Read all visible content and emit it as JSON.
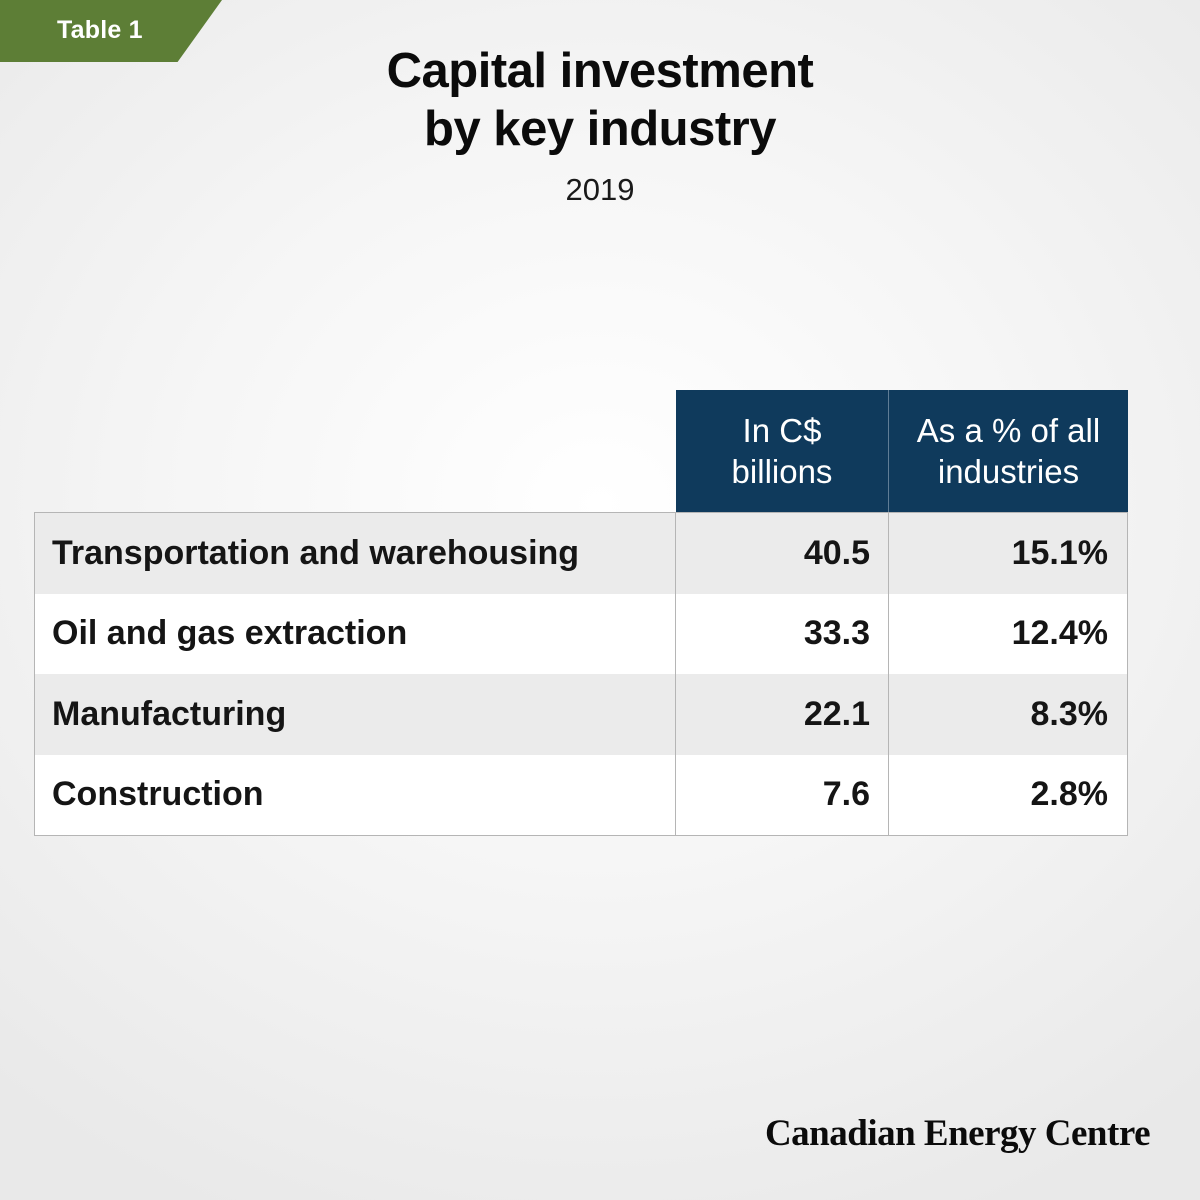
{
  "badge": "Table 1",
  "title_line1": "Capital investment",
  "title_line2": "by key industry",
  "subtitle": "2019",
  "columns": [
    "In C$\nbillions",
    "As a % of all\nindustries"
  ],
  "rows": [
    {
      "industry": "Transportation and warehousing",
      "billions": "40.5",
      "percent": "15.1%"
    },
    {
      "industry": "Oil and gas extraction",
      "billions": "33.3",
      "percent": "12.4%"
    },
    {
      "industry": "Manufacturing",
      "billions": "22.1",
      "percent": "8.3%"
    },
    {
      "industry": "Construction",
      "billions": "7.6",
      "percent": "2.8%"
    }
  ],
  "footer": "Canadian Energy Centre",
  "colors": {
    "badge": "#5d7e36",
    "header": "#0f3a5c",
    "row_shade": "#ebebeb"
  },
  "chart_data": {
    "type": "table",
    "title": "Capital investment by key industry",
    "subtitle": "2019",
    "columns": [
      "In C$ billions",
      "As a % of all industries"
    ],
    "categories": [
      "Transportation and warehousing",
      "Oil and gas extraction",
      "Manufacturing",
      "Construction"
    ],
    "series": [
      {
        "name": "In C$ billions",
        "values": [
          40.5,
          33.3,
          22.1,
          7.6
        ]
      },
      {
        "name": "As a % of all industries",
        "values": [
          15.1,
          12.4,
          8.3,
          2.8
        ]
      }
    ]
  }
}
